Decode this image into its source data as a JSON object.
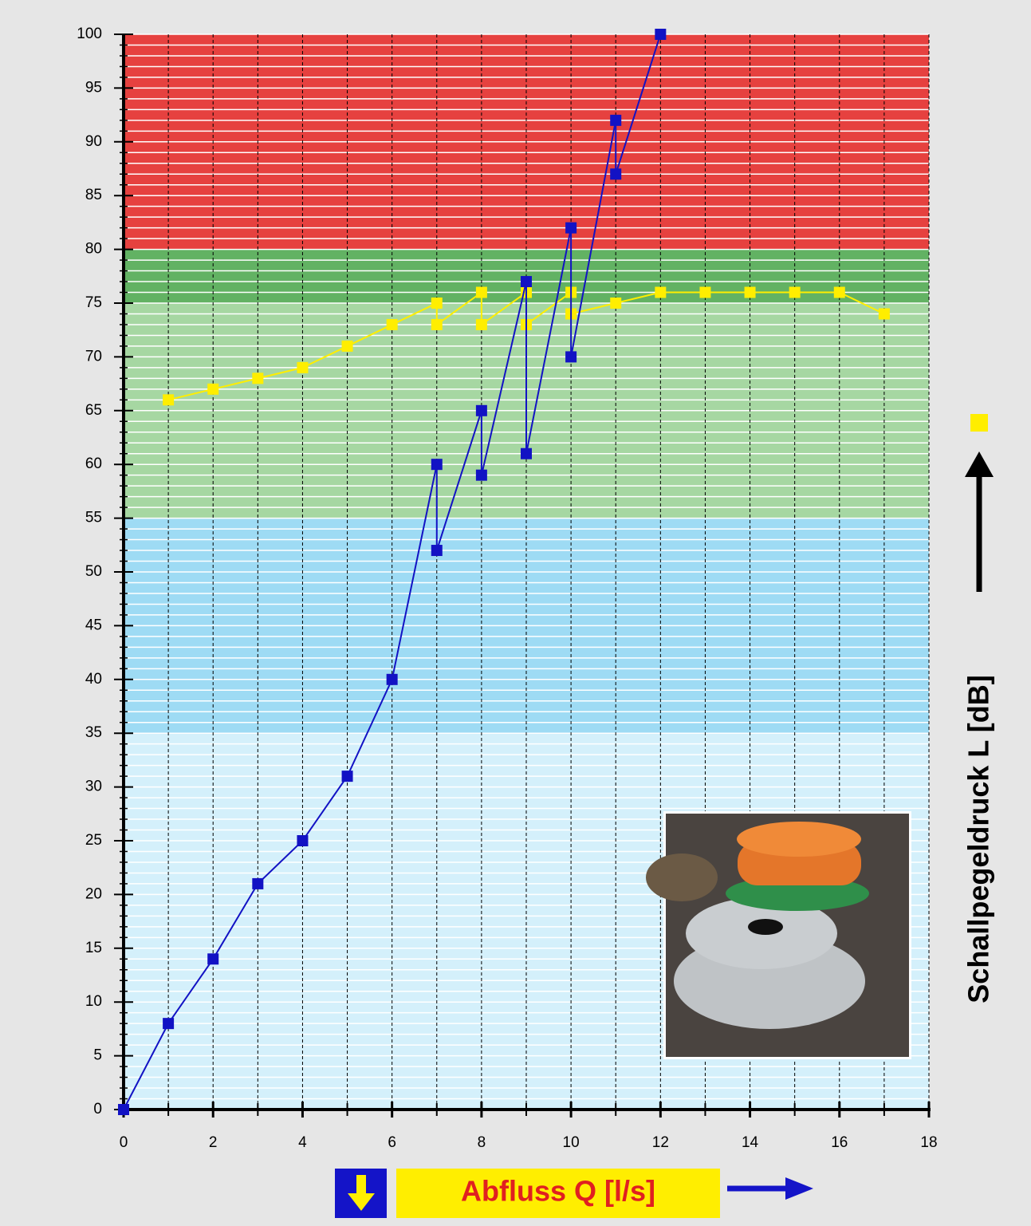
{
  "chart_data": {
    "type": "line",
    "x_label": "Abfluss Q [l/s]",
    "y_label": "Schallpegeldruck L [dB]",
    "xlim": [
      0,
      18
    ],
    "ylim": [
      0,
      100
    ],
    "xticks": [
      0,
      2,
      4,
      6,
      8,
      10,
      12,
      14,
      16,
      18
    ],
    "xminorticks": [
      1,
      3,
      5,
      7,
      9,
      11,
      13,
      15,
      17
    ],
    "yticks": [
      0,
      5,
      10,
      15,
      20,
      25,
      30,
      35,
      40,
      45,
      50,
      55,
      60,
      65,
      70,
      75,
      80,
      85,
      90,
      95,
      100
    ],
    "yminorticks": [
      1,
      2,
      3,
      4,
      6,
      7,
      8,
      9,
      11,
      12,
      13,
      14,
      16,
      17,
      18,
      19,
      21,
      22,
      23,
      24,
      26,
      27,
      28,
      29,
      31,
      32,
      33,
      34,
      36,
      37,
      38,
      39,
      41,
      42,
      43,
      44,
      46,
      47,
      48,
      49,
      51,
      52,
      53,
      54,
      56,
      57,
      58,
      59,
      61,
      62,
      63,
      64,
      66,
      67,
      68,
      69,
      71,
      72,
      73,
      74,
      76,
      77,
      78,
      79,
      81,
      82,
      83,
      84,
      86,
      87,
      88,
      89,
      91,
      92,
      93,
      94,
      96,
      97,
      98,
      99
    ],
    "bands": [
      {
        "from": 0,
        "to": 35,
        "color": "#d4f0fb"
      },
      {
        "from": 35,
        "to": 55,
        "color": "#9edbf4"
      },
      {
        "from": 55,
        "to": 75,
        "color": "#a6d7a2"
      },
      {
        "from": 75,
        "to": 80,
        "color": "#62b263"
      },
      {
        "from": 80,
        "to": 100,
        "color": "#e6413f"
      }
    ],
    "series": [
      {
        "color": "#1212c4",
        "x": [
          0,
          1,
          2,
          3,
          4,
          5,
          6,
          7,
          7,
          8,
          8,
          9,
          9,
          10,
          10,
          11,
          11,
          12
        ],
        "values": [
          0,
          8,
          14,
          21,
          25,
          31,
          40,
          60,
          52,
          65,
          59,
          77,
          61,
          82,
          70,
          92,
          87,
          100
        ]
      },
      {
        "color": "#ffee00",
        "x": [
          1,
          2,
          3,
          4,
          5,
          6,
          7,
          7,
          8,
          8,
          9,
          9,
          10,
          10,
          11,
          12,
          13,
          14,
          15,
          16,
          17
        ],
        "values": [
          66,
          67,
          68,
          69,
          71,
          73,
          75,
          73,
          76,
          73,
          76,
          73,
          76,
          74,
          75,
          76,
          76,
          76,
          76,
          76,
          74
        ]
      }
    ]
  }
}
